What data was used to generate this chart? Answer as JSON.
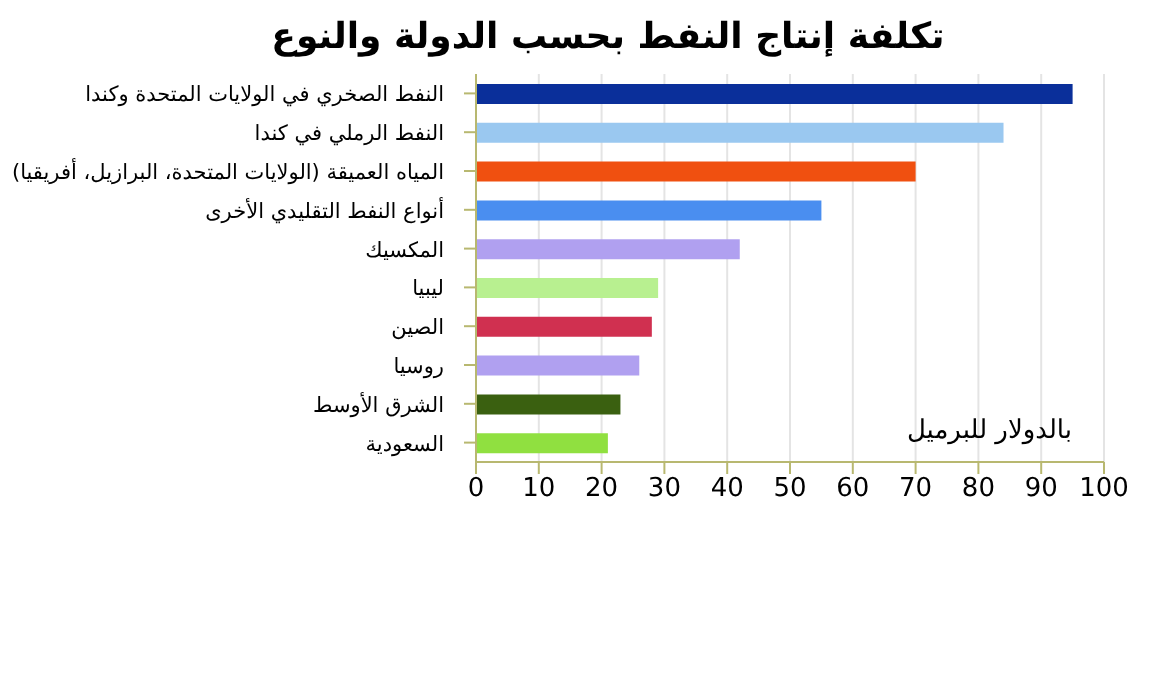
{
  "chart_data": {
    "type": "bar",
    "orientation": "horizontal",
    "title": "تكلفة إنتاج النفط بحسب الدولة والنوع",
    "categories": [
      "النفط الصخري في الولايات المتحدة وكندا",
      "النفط الرملي في كندا",
      "المياه العميقة (الولايات المتحدة، البرازيل، أفريقيا)",
      "أنواع النفط التقليدي الأخرى",
      "المكسيك",
      "ليبيا",
      "الصين",
      "روسيا",
      "الشرق الأوسط",
      "السعودية"
    ],
    "values": [
      95,
      84,
      70,
      55,
      42,
      29,
      28,
      26,
      23,
      21
    ],
    "colors": [
      "#0a2f9a",
      "#9ac8f0",
      "#f05010",
      "#4a8ef0",
      "#b0a0f0",
      "#b8f090",
      "#d03050",
      "#b0a0f0",
      "#3a6010",
      "#90e040"
    ],
    "xlim": [
      0,
      100
    ],
    "xticks": [
      0,
      10,
      20,
      30,
      40,
      50,
      60,
      70,
      80,
      90,
      100
    ],
    "grid": "x",
    "annotations": [
      "بالدولار للبرميل"
    ]
  }
}
